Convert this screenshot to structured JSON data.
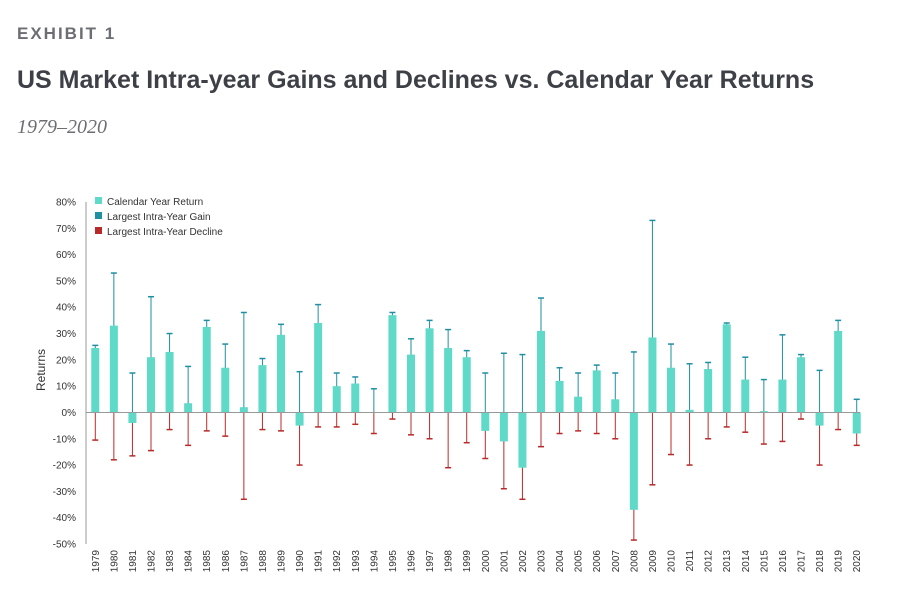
{
  "header": {
    "exhibit": "EXHIBIT 1",
    "title": "US Market Intra-year Gains and Declines vs. Calendar Year Returns",
    "subtitle": "1979–2020"
  },
  "chart_data": {
    "type": "bar",
    "ylabel": "Returns",
    "ylim": [
      -50,
      80
    ],
    "yticks": [
      -50,
      -40,
      -30,
      -20,
      -10,
      0,
      10,
      20,
      30,
      40,
      50,
      60,
      70,
      80
    ],
    "ytick_labels": [
      "-50%",
      "-40%",
      "-30%",
      "-20%",
      "-10%",
      "0%",
      "10%",
      "20%",
      "30%",
      "40%",
      "50%",
      "60%",
      "70%",
      "80%"
    ],
    "legend_position": "top-left",
    "colors": {
      "calendar": "#5fd9c8",
      "gain": "#1f8fa3",
      "decline": "#b82a2a"
    },
    "categories": [
      "1979",
      "1980",
      "1981",
      "1982",
      "1983",
      "1984",
      "1985",
      "1986",
      "1987",
      "1988",
      "1989",
      "1990",
      "1991",
      "1992",
      "1993",
      "1994",
      "1995",
      "1996",
      "1997",
      "1998",
      "1999",
      "2000",
      "2001",
      "2002",
      "2003",
      "2004",
      "2005",
      "2006",
      "2007",
      "2008",
      "2009",
      "2010",
      "2011",
      "2012",
      "2013",
      "2014",
      "2015",
      "2016",
      "2017",
      "2018",
      "2019",
      "2020"
    ],
    "series": [
      {
        "name": "Calendar Year Return",
        "values": [
          24.5,
          33,
          -4,
          21,
          23,
          3.5,
          32.5,
          17,
          2,
          18,
          29.5,
          -5,
          34,
          10,
          11,
          0,
          37,
          22,
          32,
          24.5,
          21,
          -7,
          -11,
          -21,
          31,
          12,
          6,
          16,
          5,
          -37,
          28.5,
          17,
          1,
          16.5,
          33.5,
          12.5,
          0.5,
          12.5,
          21,
          -5,
          31,
          -8
        ]
      },
      {
        "name": "Largest Intra-Year Gain",
        "values": [
          25.5,
          53,
          15,
          44,
          30,
          17.5,
          35,
          26,
          38,
          20.5,
          33.5,
          15.5,
          41,
          15,
          13.5,
          9,
          38,
          28,
          35,
          31.5,
          23.5,
          15,
          22.5,
          22,
          43.5,
          17,
          15,
          18,
          15,
          23,
          73,
          26,
          18.5,
          19,
          34,
          21,
          12.5,
          29.5,
          22,
          16,
          35,
          5
        ]
      },
      {
        "name": "Largest Intra-Year Decline",
        "values": [
          -10.5,
          -18,
          -16.5,
          -14.5,
          -6.5,
          -12.5,
          -7,
          -9,
          -33,
          -6.5,
          -7,
          -20,
          -5.5,
          -5.5,
          -4.5,
          -8,
          -2.5,
          -8.5,
          -10,
          -21,
          -11.5,
          -17.5,
          -29,
          -33,
          -13,
          -8,
          -7,
          -8,
          -10,
          -48.5,
          -27.5,
          -16,
          -20,
          -10,
          -5.5,
          -7.5,
          -12,
          -11,
          -2.5,
          -20,
          -6.5,
          -12.5
        ]
      }
    ]
  }
}
